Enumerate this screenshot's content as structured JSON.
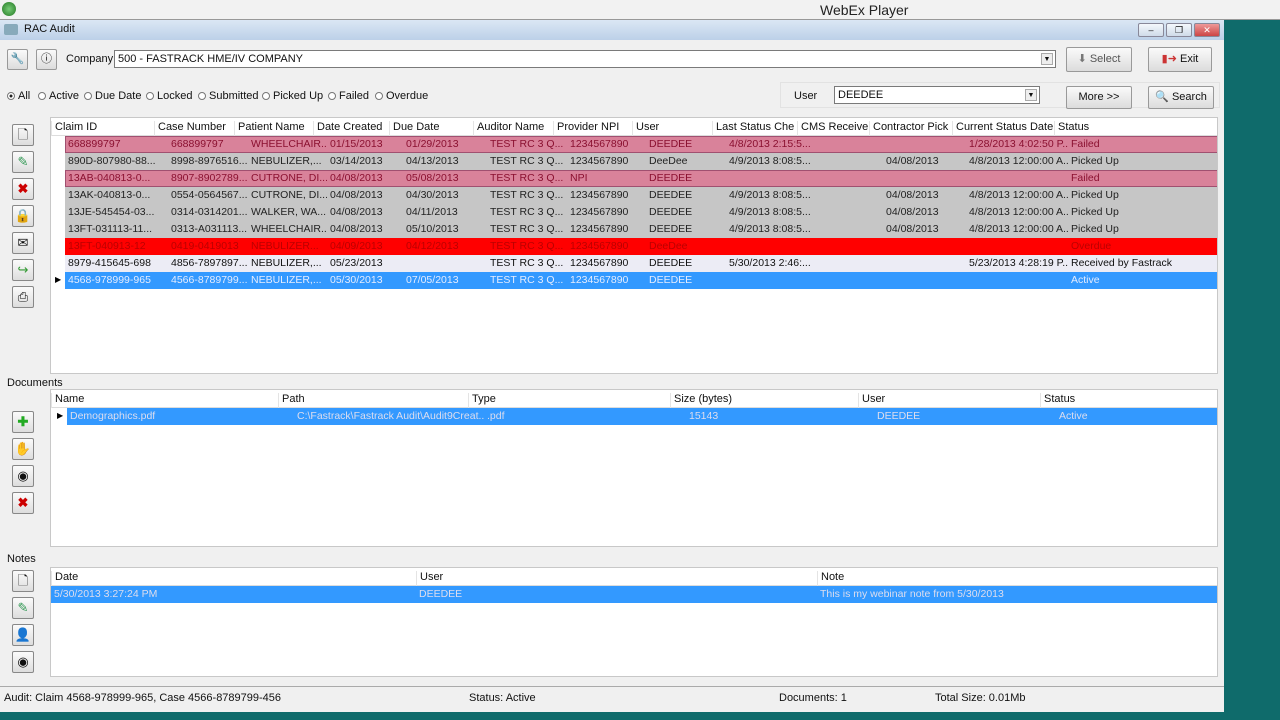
{
  "player": {
    "title": "WebEx Player"
  },
  "window": {
    "title": "RAC Audit",
    "min": "–",
    "max": "❐",
    "close": "✕"
  },
  "toolbar": {
    "company_label": "Company",
    "company_value": "500 - FASTRACK HME/IV COMPANY",
    "select_label": "Select",
    "exit_label": "Exit"
  },
  "filters": {
    "options": [
      "All",
      "Active",
      "Due Date",
      "Locked",
      "Submitted",
      "Picked Up",
      "Failed",
      "Overdue"
    ],
    "selected": "All"
  },
  "user_filter": {
    "label": "User",
    "value": "DEEDEE"
  },
  "buttons": {
    "more": "More >>",
    "search": "Search"
  },
  "colors": {
    "failed": "#d9829a",
    "picked_up": "#c6c6c6",
    "overdue": "#ff0000",
    "received": "#ececf5",
    "selected": "#3399ff",
    "teal": "#0f6b6b"
  },
  "audits": {
    "columns": [
      "Claim ID",
      "Case Number",
      "Patient Name",
      "Date Created",
      "Due Date",
      "Auditor Name",
      "Provider NPI",
      "User",
      "Last Status Che",
      "CMS Receive",
      "Contractor Pick",
      "Current Status Date",
      "Status"
    ],
    "rows": [
      [
        "668899797",
        "668899797",
        "WHEELCHAIR...",
        "01/15/2013",
        "01/29/2013",
        "TEST RC 3 Q...",
        "1234567890",
        "DEEDEE",
        "4/8/2013 2:15:5...",
        "",
        "",
        "1/28/2013 4:02:50 P...",
        "Failed"
      ],
      [
        "890D-807980-88...",
        "8998-8976516...",
        "NEBULIZER,...",
        "03/14/2013",
        "04/13/2013",
        "TEST RC 3 Q...",
        "1234567890",
        "DeeDee",
        "4/9/2013 8:08:5...",
        "",
        "04/08/2013",
        "4/8/2013 12:00:00 A...",
        "Picked Up"
      ],
      [
        "13AB-040813-0...",
        "8907-8902789...",
        "CUTRONE, DI...",
        "04/08/2013",
        "05/08/2013",
        "TEST RC 3 Q...",
        "NPI",
        "DEEDEE",
        "",
        "",
        "",
        "",
        "Failed"
      ],
      [
        "13AK-040813-0...",
        "0554-0564567...",
        "CUTRONE, DI...",
        "04/08/2013",
        "04/30/2013",
        "TEST RC 3 Q...",
        "1234567890",
        "DEEDEE",
        "4/9/2013 8:08:5...",
        "",
        "04/08/2013",
        "4/8/2013 12:00:00 A...",
        "Picked Up"
      ],
      [
        "13JE-545454-03...",
        "0314-0314201...",
        "WALKER, WA...",
        "04/08/2013",
        "04/11/2013",
        "TEST RC 3 Q...",
        "1234567890",
        "DEEDEE",
        "4/9/2013 8:08:5...",
        "",
        "04/08/2013",
        "4/8/2013 12:00:00 A...",
        "Picked Up"
      ],
      [
        "13FT-031113-11...",
        "0313-A031113...",
        "WHEELCHAIR...",
        "04/08/2013",
        "05/10/2013",
        "TEST RC 3 Q...",
        "1234567890",
        "DEEDEE",
        "4/9/2013 8:08:5...",
        "",
        "04/08/2013",
        "4/8/2013 12:00:00 A...",
        "Picked Up"
      ],
      [
        "13FT-040913-12",
        "0419-0419013",
        "NEBULIZER...",
        "04/09/2013",
        "04/12/2013",
        "TEST RC 3 Q...",
        "1234567890",
        "DeeDee",
        "",
        "",
        "",
        "",
        "Overdue"
      ],
      [
        "8979-415645-698",
        "4856-7897897...",
        "NEBULIZER,...",
        "05/23/2013",
        "",
        "TEST RC 3 Q...",
        "1234567890",
        "DEEDEE",
        "5/30/2013 2:46:...",
        "",
        "",
        "5/23/2013 4:28:19 P...",
        "Received by Fastrack"
      ],
      [
        "4568-978999-965",
        "4566-8789799...",
        "NEBULIZER,...",
        "05/30/2013",
        "07/05/2013",
        "TEST RC 3 Q...",
        "1234567890",
        "DEEDEE",
        "",
        "",
        "",
        "",
        "Active"
      ]
    ]
  },
  "documents": {
    "label": "Documents",
    "columns": [
      "Name",
      "Path",
      "Type",
      "Size (bytes)",
      "User",
      "Status"
    ],
    "rows": [
      [
        "Demographics.pdf",
        "C:\\Fastrack\\Fastrack  Audit\\Audit9Creat...",
        ".pdf",
        "15143",
        "DEEDEE",
        "Active"
      ]
    ]
  },
  "notes": {
    "label": "Notes",
    "columns": [
      "Date",
      "User",
      "Note"
    ],
    "rows": [
      [
        "5/30/2013 3:27:24 PM",
        "DEEDEE",
        "This is my webinar note from 5/30/2013"
      ]
    ]
  },
  "statusbar": {
    "audit": "Audit: Claim 4568-978999-965, Case 4566-8789799-456",
    "status": "Status: Active",
    "documents": "Documents: 1",
    "total_size": "Total Size: 0.01Mb"
  }
}
